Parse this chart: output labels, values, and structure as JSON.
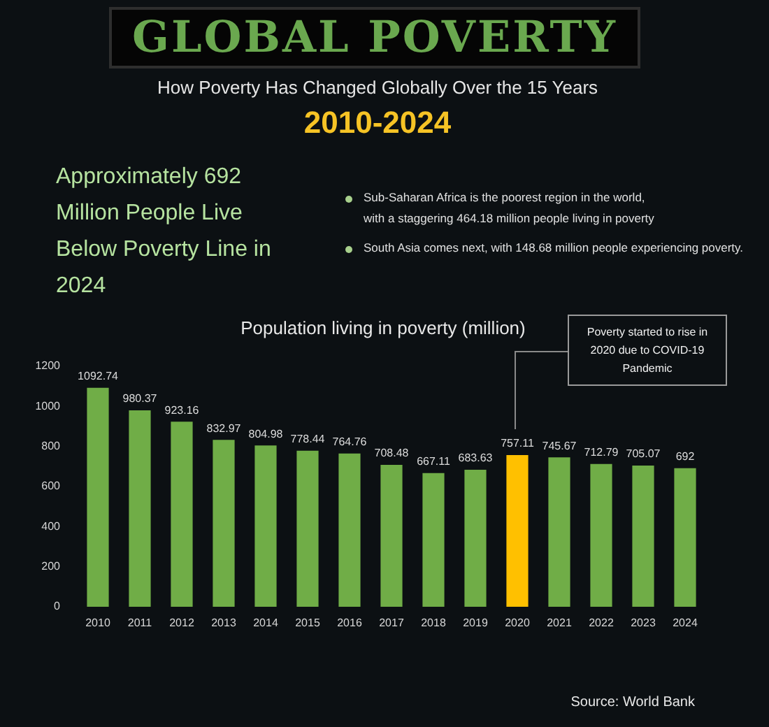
{
  "chart_data": {
    "type": "bar",
    "title": "GLOBAL POVERTY",
    "subtitle": "How Poverty Has Changed Globally Over the 15 Years",
    "ylabel": "Population living in poverty (million)",
    "categories": [
      "2010",
      "2011",
      "2012",
      "2013",
      "2014",
      "2015",
      "2016",
      "2017",
      "2018",
      "2019",
      "2020",
      "2021",
      "2022",
      "2023",
      "2024"
    ],
    "values": [
      1092.74,
      980.37,
      923.16,
      832.97,
      804.98,
      778.44,
      764.76,
      708.48,
      667.11,
      683.63,
      757.11,
      745.67,
      712.79,
      705.07,
      692
    ],
    "colors": [
      "#70ad47",
      "#70ad47",
      "#70ad47",
      "#70ad47",
      "#70ad47",
      "#70ad47",
      "#70ad47",
      "#70ad47",
      "#70ad47",
      "#70ad47",
      "#ffc000",
      "#70ad47",
      "#70ad47",
      "#70ad47",
      "#70ad47"
    ],
    "ylim": [
      0,
      1200
    ],
    "yticks": [
      0,
      200,
      400,
      600,
      800,
      1000,
      1200
    ],
    "grid": false,
    "data_labels": true,
    "annotations": [
      "2010-2024",
      "Approximately 692 Million People Live Below Poverty Line in 2024",
      "Sub-Saharan Africa is the poorest region in the world, with a staggering 464.18 million people living in poverty",
      "South Asia comes next, with 148.68 million people experiencing poverty.",
      "Poverty started to rise in 2020 due to COVID-19 Pandemic",
      "Source: World Bank"
    ]
  }
}
